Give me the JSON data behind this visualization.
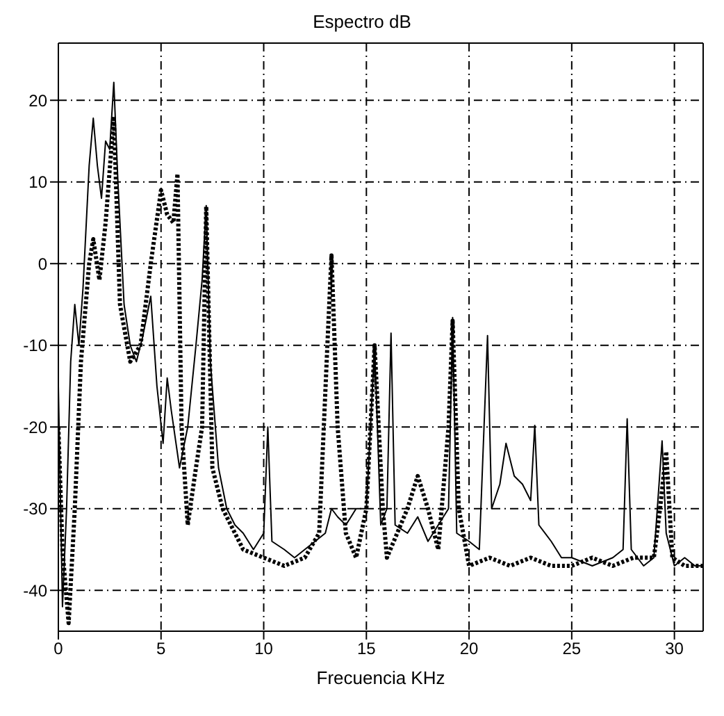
{
  "chart_data": {
    "type": "line",
    "title": "Espectro dB",
    "xlabel": "Frecuencia KHz",
    "xlim": [
      0,
      31.4
    ],
    "ylim": [
      -45,
      27
    ],
    "xticks": [
      0,
      5,
      10,
      15,
      20,
      25,
      30
    ],
    "yticks": [
      -40,
      -30,
      -20,
      -10,
      0,
      10,
      20
    ],
    "grid": true,
    "marker": "none",
    "series": [
      {
        "color": "#000000",
        "line_style": "solid",
        "x": [
          0,
          0.2,
          0.4,
          0.6,
          0.8,
          1.0,
          1.2,
          1.5,
          1.7,
          1.9,
          2.1,
          2.3,
          2.5,
          2.7,
          2.9,
          3.2,
          3.5,
          3.8,
          4.1,
          4.5,
          4.8,
          5.1,
          5.3,
          5.5,
          5.9,
          6.3,
          6.7,
          7.0,
          7.2,
          7.4,
          7.8,
          8.2,
          8.6,
          9.0,
          9.5,
          10.0,
          10.2,
          10.4,
          11.0,
          11.5,
          12.0,
          12.5,
          13.0,
          13.3,
          13.6,
          14.0,
          14.5,
          15.0,
          15.4,
          15.7,
          16.0,
          16.2,
          16.4,
          17.0,
          17.5,
          18.0,
          18.5,
          19.0,
          19.2,
          19.4,
          20.0,
          20.5,
          20.9,
          21.1,
          21.5,
          21.8,
          22.2,
          22.6,
          23.0,
          23.2,
          23.4,
          24.0,
          24.5,
          25.0,
          26.0,
          27.0,
          27.5,
          27.7,
          27.9,
          28.5,
          29.0,
          29.4,
          29.6,
          30.0,
          30.5,
          31.0,
          31.4
        ],
        "values": [
          -15,
          -42,
          -30,
          -12,
          -5,
          -10,
          -3,
          12,
          17.8,
          12,
          8,
          15,
          14,
          22.2,
          10,
          -5,
          -10,
          -12,
          -9,
          -4,
          -15,
          -22,
          -14,
          -18,
          -25,
          -20,
          -10,
          -2,
          7.1,
          -12,
          -25,
          -30,
          -32,
          -33,
          -35,
          -33,
          -20,
          -34,
          -35,
          -36,
          -35,
          -34,
          -33,
          -30,
          -31,
          -32,
          -30,
          -30,
          -10,
          -32,
          -30,
          -8.5,
          -32,
          -33,
          -31,
          -34,
          -32,
          -30,
          -6.6,
          -33,
          -34,
          -35,
          -8.8,
          -30,
          -27,
          -22,
          -26,
          -27,
          -29,
          -19.8,
          -32,
          -34,
          -36,
          -36,
          -37,
          -36,
          -35,
          -19,
          -35,
          -37,
          -36,
          -21.7,
          -33,
          -37,
          -36,
          -37,
          -37
        ]
      },
      {
        "color": "#000000",
        "line_style": "dotted",
        "x": [
          0,
          0.2,
          0.5,
          0.8,
          1.1,
          1.5,
          1.7,
          2.0,
          2.3,
          2.7,
          3.0,
          3.5,
          4.0,
          4.5,
          5.0,
          5.3,
          5.6,
          5.8,
          6.0,
          6.3,
          6.7,
          7.0,
          7.2,
          7.5,
          8.0,
          9.0,
          10.0,
          11.0,
          12.0,
          12.7,
          13.1,
          13.3,
          13.6,
          14.0,
          14.5,
          15.0,
          15.4,
          15.8,
          16.0,
          16.5,
          17.0,
          17.5,
          18.0,
          18.5,
          19.0,
          19.2,
          19.5,
          20.0,
          21.0,
          22.0,
          23.0,
          24.0,
          25.0,
          26.0,
          27.0,
          28.0,
          29.0,
          29.3,
          29.6,
          29.9,
          30.5,
          31.4
        ],
        "values": [
          -20,
          -35,
          -44,
          -30,
          -12,
          0,
          3,
          -2,
          5,
          18,
          -5,
          -12,
          -10,
          0,
          9,
          6,
          5,
          11,
          -20,
          -32,
          -25,
          -20,
          7,
          -25,
          -30,
          -35,
          -36,
          -37,
          -36,
          -33,
          -10,
          1,
          -20,
          -33,
          -36,
          -30,
          -10,
          -30,
          -36,
          -33,
          -30,
          -26,
          -30,
          -35,
          -20,
          -7,
          -30,
          -37,
          -36,
          -37,
          -36,
          -37,
          -37,
          -36,
          -37,
          -36,
          -36,
          -30,
          -23,
          -36,
          -37,
          -37
        ]
      }
    ]
  }
}
